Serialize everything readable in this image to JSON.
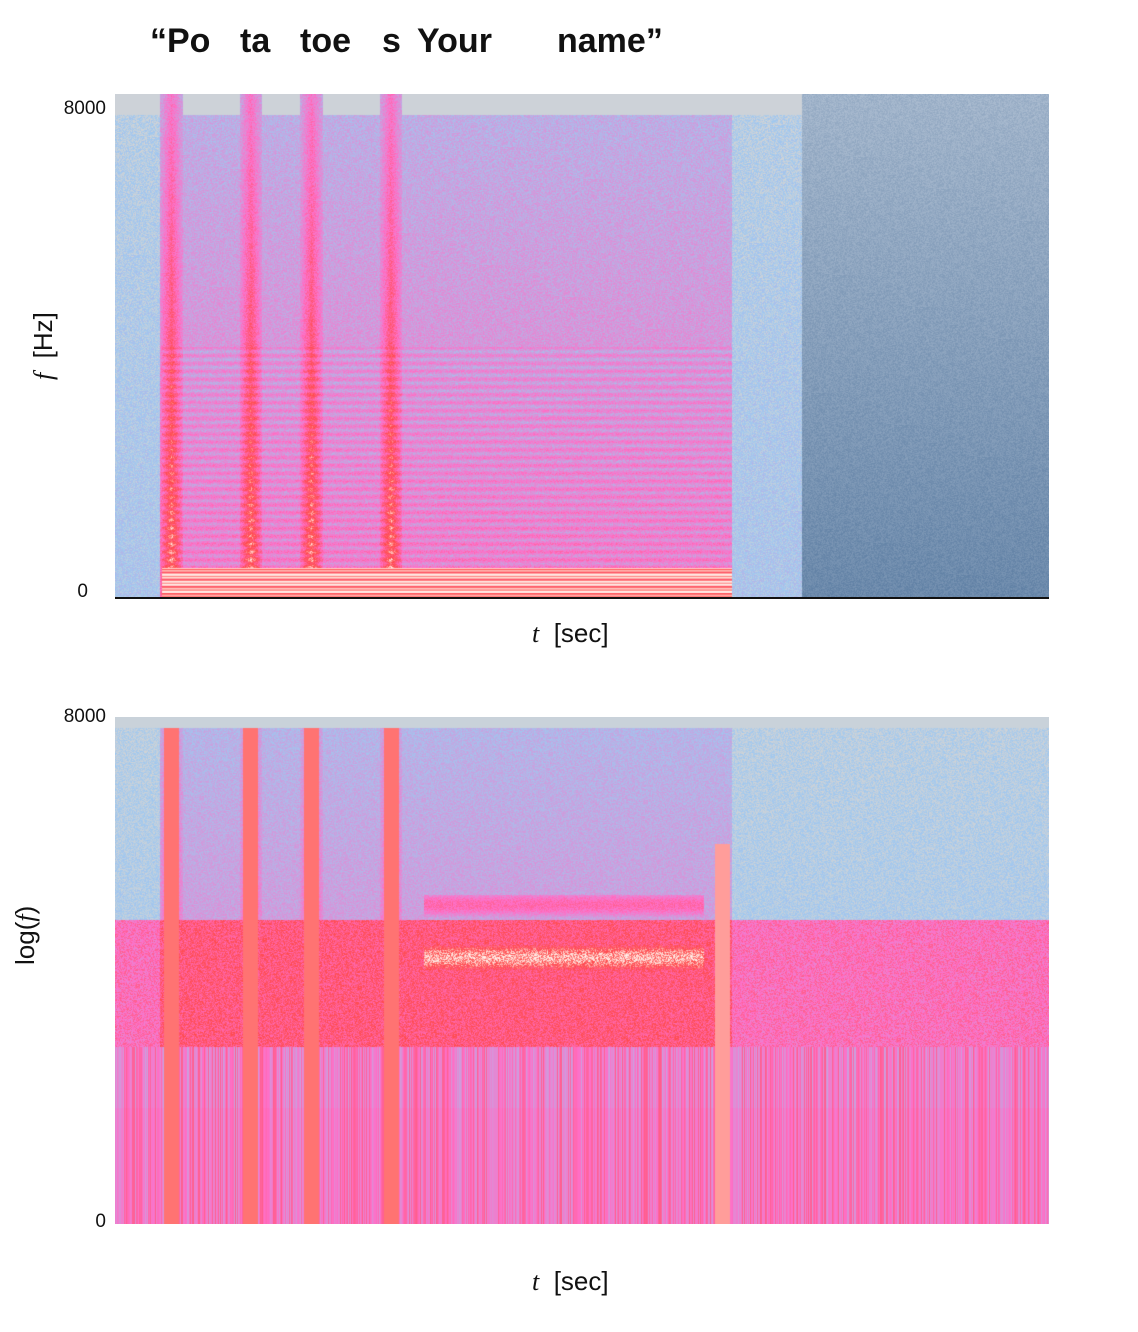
{
  "title_words": [
    "“Po",
    "ta",
    "toe",
    "s",
    "Your",
    "name”"
  ],
  "chart_data": [
    {
      "type": "heatmap",
      "title": "“Po ta toe s Your name”",
      "xlabel": "t [sec]",
      "ylabel": "f [Hz]",
      "ylim": [
        0,
        8000
      ],
      "ytick_labels": [
        "0",
        "8000"
      ],
      "yscale": "linear",
      "colors": {
        "low": "#9fc8f0",
        "mid": "#ff6fc8",
        "high": "#ff4a4a",
        "peak": "#fff0ea",
        "bg": "#d4d4d4",
        "quiet_region": "#5d7ea3"
      }
    },
    {
      "type": "heatmap",
      "xlabel": "t [sec]",
      "ylabel": "log(f)",
      "ylim": [
        0,
        8000
      ],
      "ytick_labels": [
        "0",
        "8000"
      ],
      "yscale": "log",
      "colors": {
        "low": "#9fc8f0",
        "mid": "#ff6fc8",
        "high": "#ff4a4a",
        "peak": "#fff0ea",
        "bg": "#d4d4d4"
      }
    }
  ],
  "labels": {
    "t_symbol": "t",
    "t_unit": "[sec]",
    "f_symbol": "f",
    "f_unit": "[Hz]",
    "log_prefix": "log(",
    "log_suffix": ")"
  }
}
